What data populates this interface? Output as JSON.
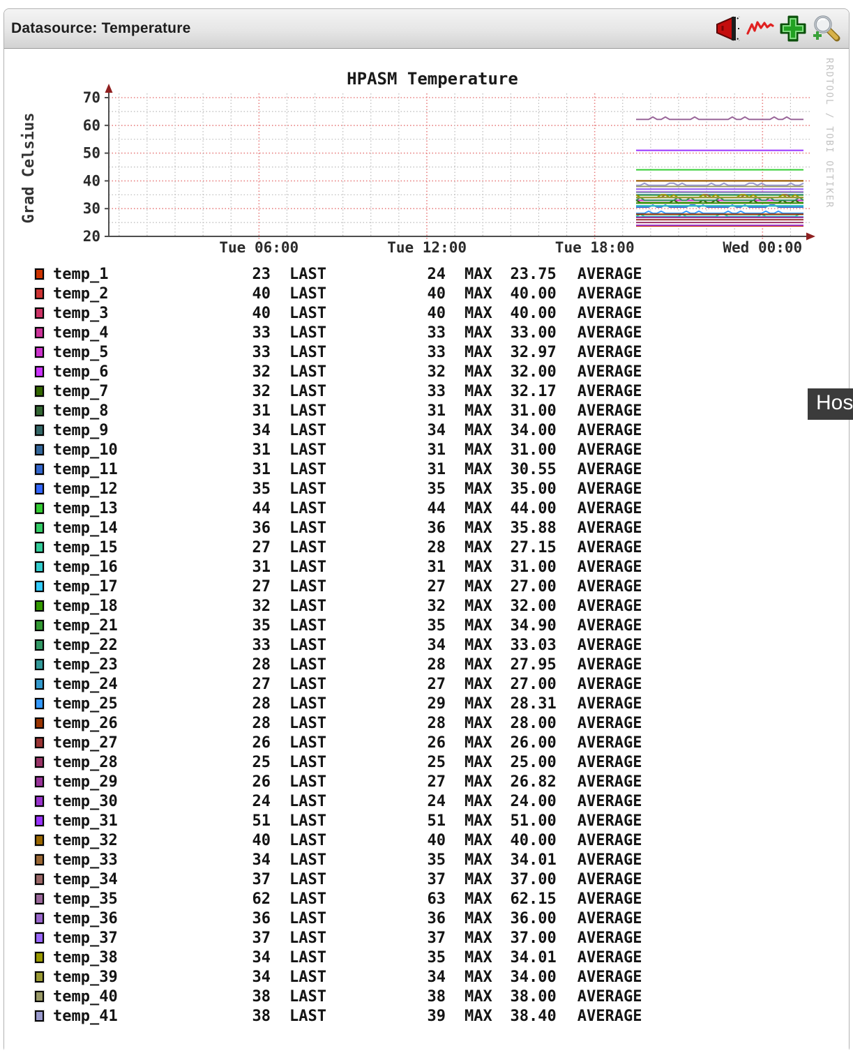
{
  "header": {
    "title": "Datasource: Temperature",
    "icons": [
      {
        "name": "announce-megaphone-icon"
      },
      {
        "name": "graph-line-icon"
      },
      {
        "name": "add-plus-icon"
      },
      {
        "name": "zoom-magnifier-icon"
      }
    ]
  },
  "tooltip": {
    "text": "Hos"
  },
  "watermark": "RRDTOOL / TOBI OETIKER",
  "legend_labels": {
    "last": "LAST",
    "max": "MAX",
    "avg": "AVERAGE"
  },
  "chart_data": {
    "type": "line",
    "title": "HPASM Temperature",
    "ylabel": "Grad Celsius",
    "ylim": [
      20,
      72
    ],
    "yticks": [
      20,
      30,
      40,
      50,
      60,
      70
    ],
    "xticks": [
      "Tue 06:00",
      "Tue 12:00",
      "Tue 18:00",
      "Wed 00:00"
    ],
    "grid": "major red dotted, minor gray dotted",
    "legend_position": "below",
    "x_data_range": [
      "Tue 19:15",
      "Wed 01:45"
    ],
    "axis_color": "#4d4d4d",
    "arrow_color": "#8f2020",
    "major_grid_color": "#e87f7f",
    "minor_grid_color": "#b9b9b9",
    "series": [
      {
        "name": "temp_1",
        "color": "#CC3300",
        "last": 23,
        "max": 24,
        "avg": 23.75
      },
      {
        "name": "temp_2",
        "color": "#CC3333",
        "last": 40,
        "max": 40,
        "avg": 40.0
      },
      {
        "name": "temp_3",
        "color": "#CC3366",
        "last": 40,
        "max": 40,
        "avg": 40.0
      },
      {
        "name": "temp_4",
        "color": "#CC3399",
        "last": 33,
        "max": 33,
        "avg": 33.0
      },
      {
        "name": "temp_5",
        "color": "#CC33CC",
        "last": 33,
        "max": 33,
        "avg": 32.97
      },
      {
        "name": "temp_6",
        "color": "#CC33FF",
        "last": 32,
        "max": 32,
        "avg": 32.0
      },
      {
        "name": "temp_7",
        "color": "#336600",
        "last": 32,
        "max": 33,
        "avg": 32.17
      },
      {
        "name": "temp_8",
        "color": "#336633",
        "last": 31,
        "max": 31,
        "avg": 31.0
      },
      {
        "name": "temp_9",
        "color": "#336666",
        "last": 34,
        "max": 34,
        "avg": 34.0
      },
      {
        "name": "temp_10",
        "color": "#336699",
        "last": 31,
        "max": 31,
        "avg": 31.0
      },
      {
        "name": "temp_11",
        "color": "#3366CC",
        "last": 31,
        "max": 31,
        "avg": 30.55
      },
      {
        "name": "temp_12",
        "color": "#3366FF",
        "last": 35,
        "max": 35,
        "avg": 35.0
      },
      {
        "name": "temp_13",
        "color": "#33CC33",
        "last": 44,
        "max": 44,
        "avg": 44.0
      },
      {
        "name": "temp_14",
        "color": "#33CC66",
        "last": 36,
        "max": 36,
        "avg": 35.88
      },
      {
        "name": "temp_15",
        "color": "#33CC99",
        "last": 27,
        "max": 28,
        "avg": 27.15
      },
      {
        "name": "temp_16",
        "color": "#33CCCC",
        "last": 31,
        "max": 31,
        "avg": 31.0
      },
      {
        "name": "temp_17",
        "color": "#33CCFF",
        "last": 27,
        "max": 27,
        "avg": 27.0
      },
      {
        "name": "temp_18",
        "color": "#339900",
        "last": 32,
        "max": 32,
        "avg": 32.0
      },
      {
        "name": "temp_21",
        "color": "#339933",
        "last": 35,
        "max": 35,
        "avg": 34.9
      },
      {
        "name": "temp_22",
        "color": "#339966",
        "last": 33,
        "max": 34,
        "avg": 33.03
      },
      {
        "name": "temp_23",
        "color": "#339999",
        "last": 28,
        "max": 28,
        "avg": 27.95
      },
      {
        "name": "temp_24",
        "color": "#3399CC",
        "last": 27,
        "max": 27,
        "avg": 27.0
      },
      {
        "name": "temp_25",
        "color": "#3399FF",
        "last": 28,
        "max": 29,
        "avg": 28.31
      },
      {
        "name": "temp_26",
        "color": "#993300",
        "last": 28,
        "max": 28,
        "avg": 28.0
      },
      {
        "name": "temp_27",
        "color": "#993333",
        "last": 26,
        "max": 26,
        "avg": 26.0
      },
      {
        "name": "temp_28",
        "color": "#993366",
        "last": 25,
        "max": 25,
        "avg": 25.0
      },
      {
        "name": "temp_29",
        "color": "#993399",
        "last": 26,
        "max": 27,
        "avg": 26.82
      },
      {
        "name": "temp_30",
        "color": "#9933CC",
        "last": 24,
        "max": 24,
        "avg": 24.0
      },
      {
        "name": "temp_31",
        "color": "#9933FF",
        "last": 51,
        "max": 51,
        "avg": 51.0
      },
      {
        "name": "temp_32",
        "color": "#996600",
        "last": 40,
        "max": 40,
        "avg": 40.0
      },
      {
        "name": "temp_33",
        "color": "#996633",
        "last": 34,
        "max": 35,
        "avg": 34.01
      },
      {
        "name": "temp_34",
        "color": "#996666",
        "last": 37,
        "max": 37,
        "avg": 37.0
      },
      {
        "name": "temp_35",
        "color": "#996699",
        "last": 62,
        "max": 63,
        "avg": 62.15
      },
      {
        "name": "temp_36",
        "color": "#9966CC",
        "last": 36,
        "max": 36,
        "avg": 36.0
      },
      {
        "name": "temp_37",
        "color": "#9966FF",
        "last": 37,
        "max": 37,
        "avg": 37.0
      },
      {
        "name": "temp_38",
        "color": "#999900",
        "last": 34,
        "max": 35,
        "avg": 34.01
      },
      {
        "name": "temp_39",
        "color": "#999933",
        "last": 34,
        "max": 34,
        "avg": 34.0
      },
      {
        "name": "temp_40",
        "color": "#999966",
        "last": 38,
        "max": 38,
        "avg": 38.0
      },
      {
        "name": "temp_41",
        "color": "#9999CC",
        "last": 38,
        "max": 39,
        "avg": 38.4
      }
    ]
  }
}
